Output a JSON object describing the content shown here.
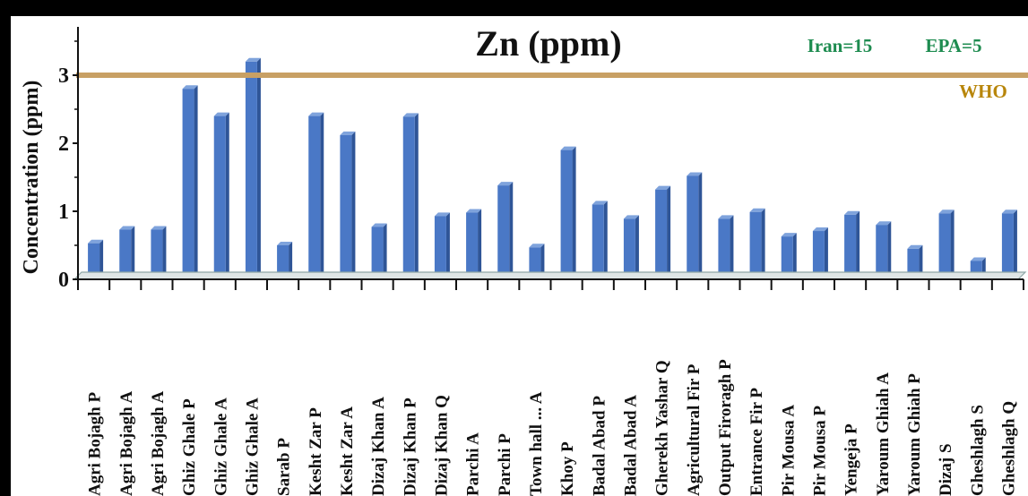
{
  "chart_data": {
    "type": "bar",
    "title": "Zn (ppm)",
    "ylabel": "Concentration (ppm)",
    "xlabel": "",
    "ylim": [
      0,
      3.6
    ],
    "yticks": [
      0,
      1,
      2,
      3
    ],
    "grid": false,
    "series_color": "#4a78c6",
    "categories": [
      "Agri Bojagh P",
      "Agri Bojagh A",
      "Agri Bojagh A",
      "Ghiz Ghale P",
      "Ghiz Ghale A",
      "Ghiz Ghale A",
      "Sarab P",
      "Kesht Zar P",
      "Kesht Zar A",
      "Dizaj Khan A",
      "Dizaj Khan P",
      "Dizaj Khan Q",
      "Parchi A",
      "Parchi P",
      "Town hall ... A",
      "Khoy P",
      "Badal Abad P",
      "Badal Abad A",
      "Gherekh Yashar Q",
      "Agricultural Fir P",
      "Output Firoragh P",
      "Entrance Fir P",
      "Pir Mousa A",
      "Pir Mousa P",
      "Yengeja P",
      "Yaroum Ghiah A",
      "Yaroum Ghiah P",
      "Dizaj S",
      "Gheshlagh S",
      "Gheshlagh Q"
    ],
    "values": [
      0.53,
      0.73,
      0.73,
      2.8,
      2.4,
      3.2,
      0.5,
      2.4,
      2.12,
      0.77,
      2.39,
      0.93,
      0.98,
      1.38,
      0.47,
      1.9,
      1.1,
      0.89,
      1.32,
      1.52,
      0.89,
      0.99,
      0.63,
      0.71,
      0.95,
      0.8,
      0.45,
      0.97,
      0.27,
      0.97
    ],
    "reference_line": {
      "name": "WHO",
      "value": 3,
      "color": "#c8a064"
    },
    "annotations": {
      "iran": "Iran=15",
      "epa": "EPA=5",
      "who": "WHO",
      "guideline_color": "#1e8c50",
      "who_color": "#b8860b"
    }
  }
}
